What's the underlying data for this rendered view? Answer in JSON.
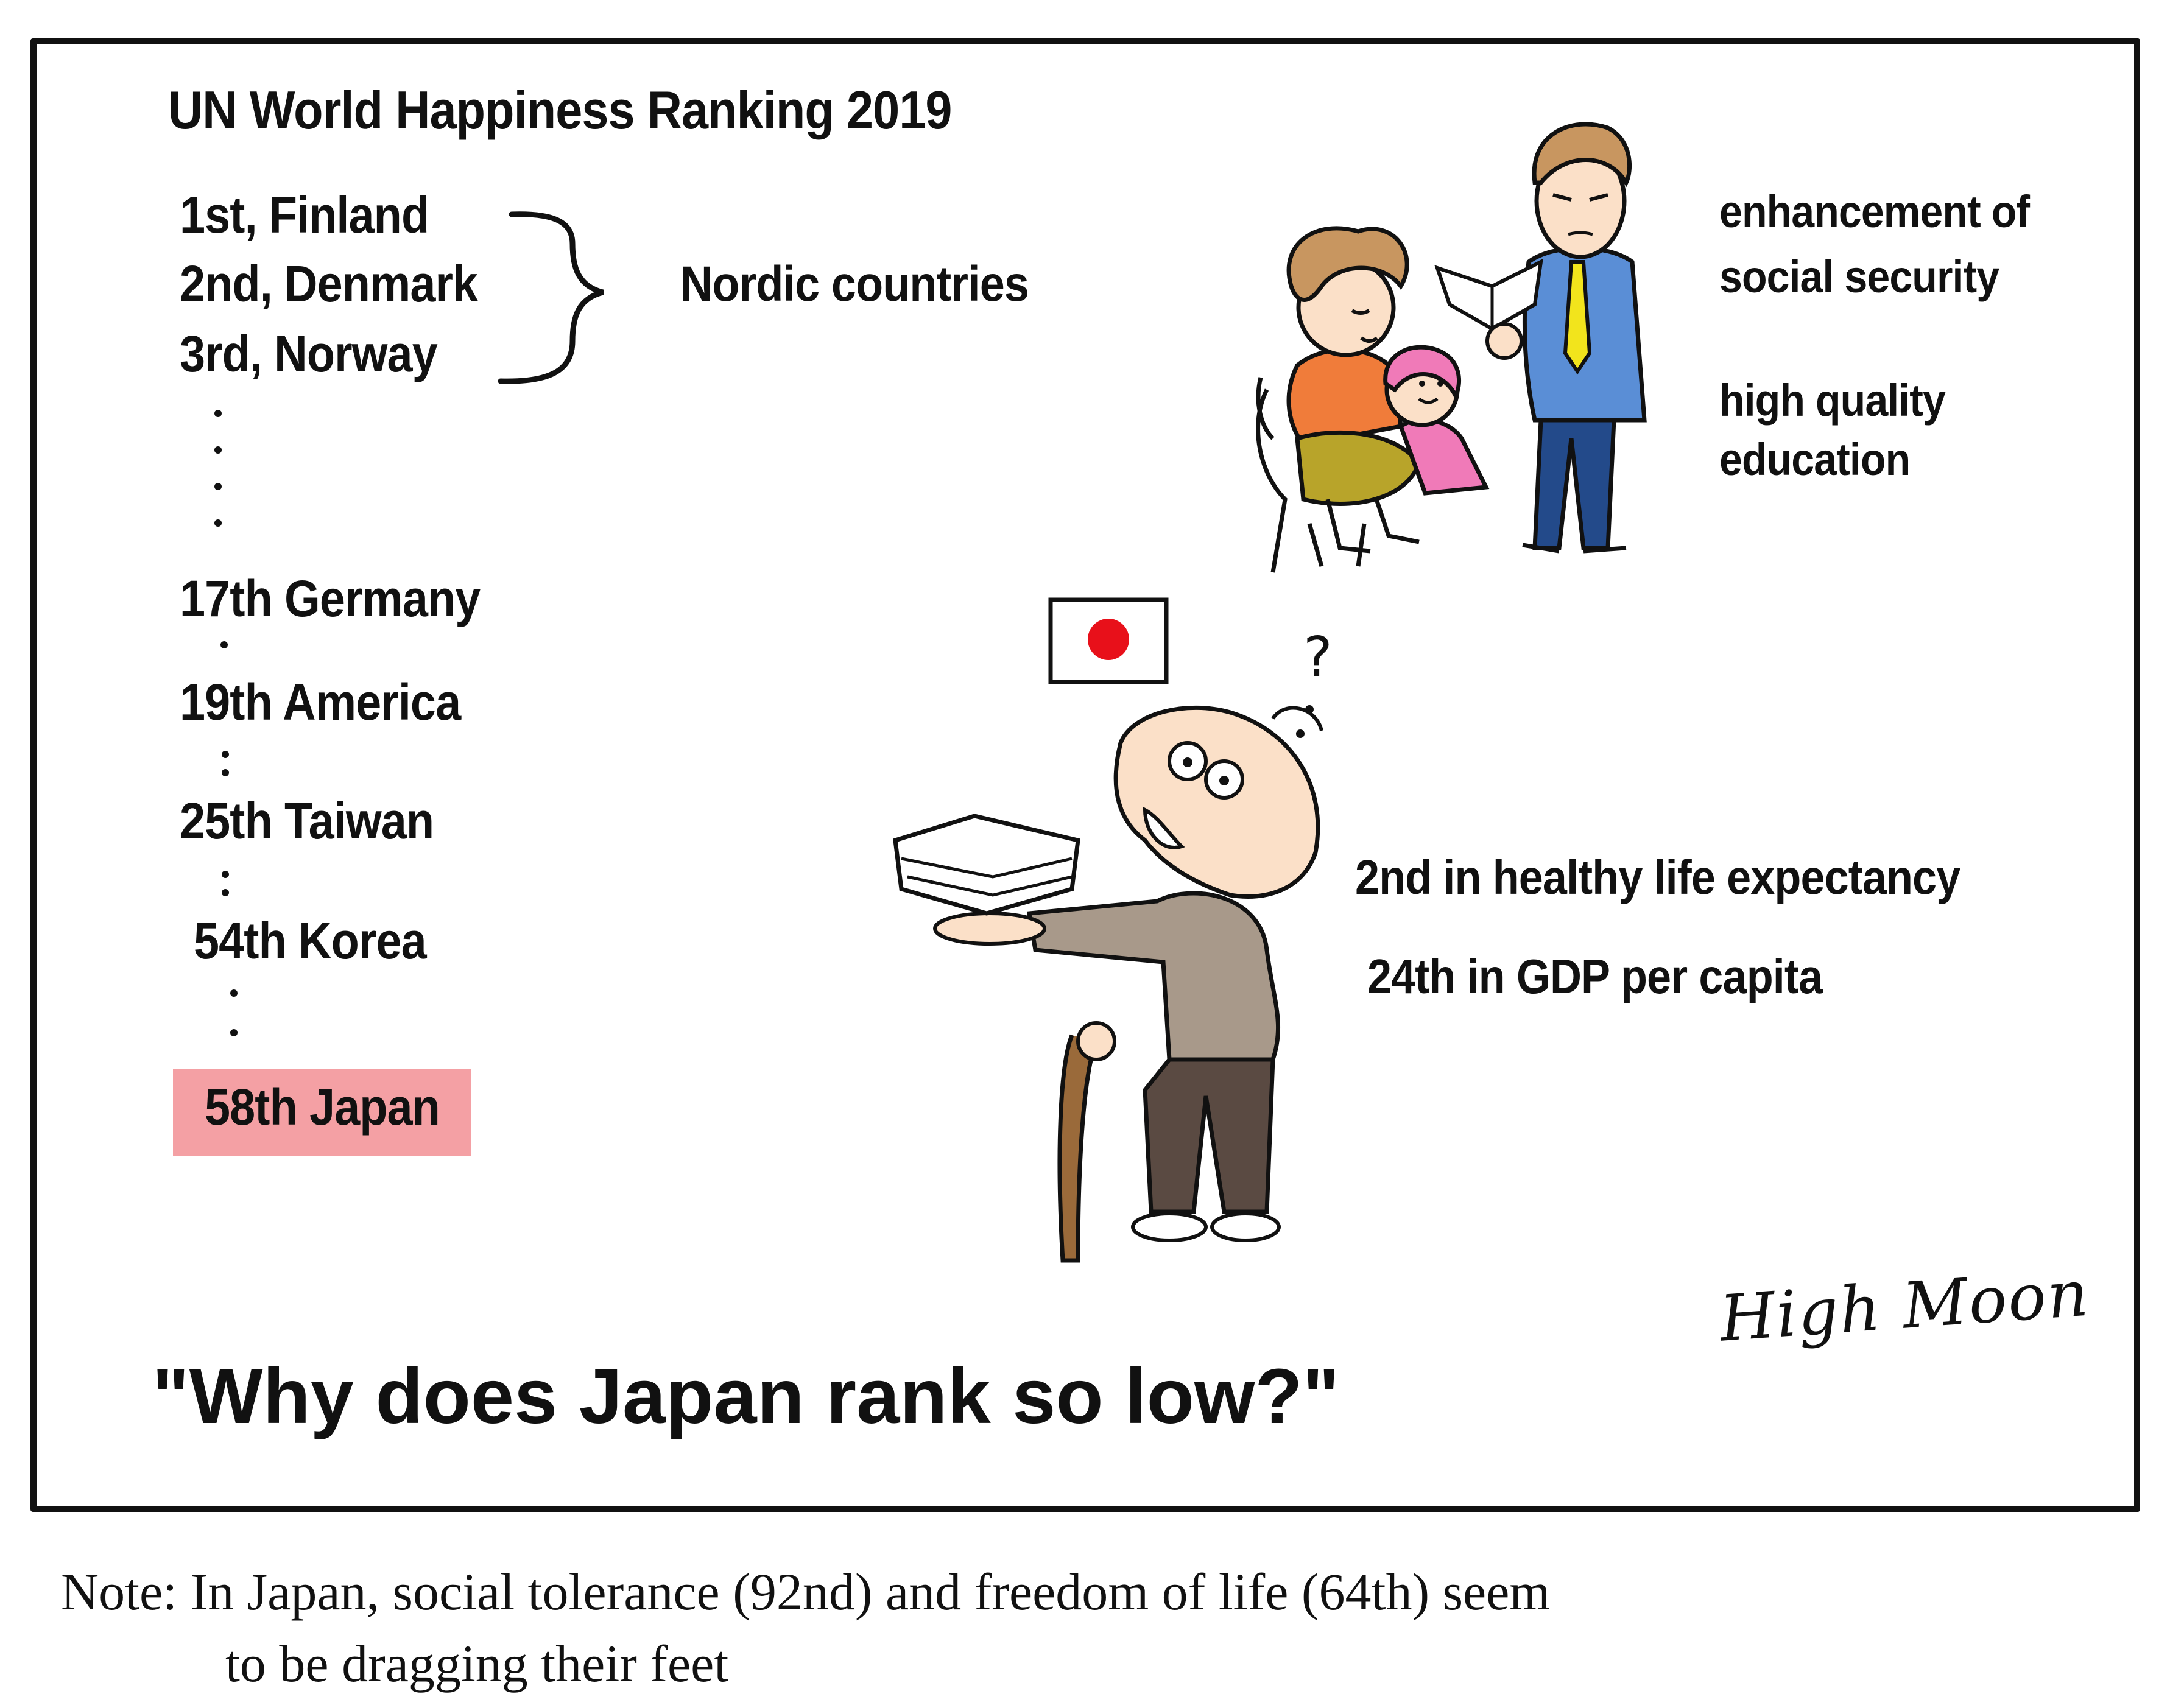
{
  "title": "UN World Happiness Ranking 2019",
  "rankings": [
    "1st, Finland",
    "2nd, Denmark",
    "3rd, Norway",
    "17th Germany",
    "19th America",
    "25th Taiwan",
    "54th Korea",
    "58th Japan"
  ],
  "nordic_label": "Nordic countries",
  "nordic_factors": [
    "enhancement of",
    "social security",
    "high quality",
    "education"
  ],
  "japan_stats": [
    "2nd in healthy life expectancy",
    "24th in GDP per capita"
  ],
  "question": "\"Why does Japan rank so low?\"",
  "thought_mark": "?",
  "signature": "High Moon",
  "note": {
    "line1": "Note: In Japan, social tolerance (92nd) and freedom of life (64th) seem",
    "line2": "to be dragging their feet"
  },
  "colors": {
    "japan_highlight": "#f4a0a4",
    "flag_red": "#e8101a",
    "woman_shirt": "#f07c3a",
    "woman_skirt": "#b8a42a",
    "girl_dress": "#f07ab8",
    "man_suit": "#5a8ed6",
    "man_tie": "#f2e41c",
    "man_trousers": "#234a8a",
    "old_man_shirt": "#a8998a",
    "old_man_trousers": "#5a4a42",
    "cane": "#9a6a3a",
    "skin": "#fbe0c8",
    "hair": "#c89660"
  }
}
